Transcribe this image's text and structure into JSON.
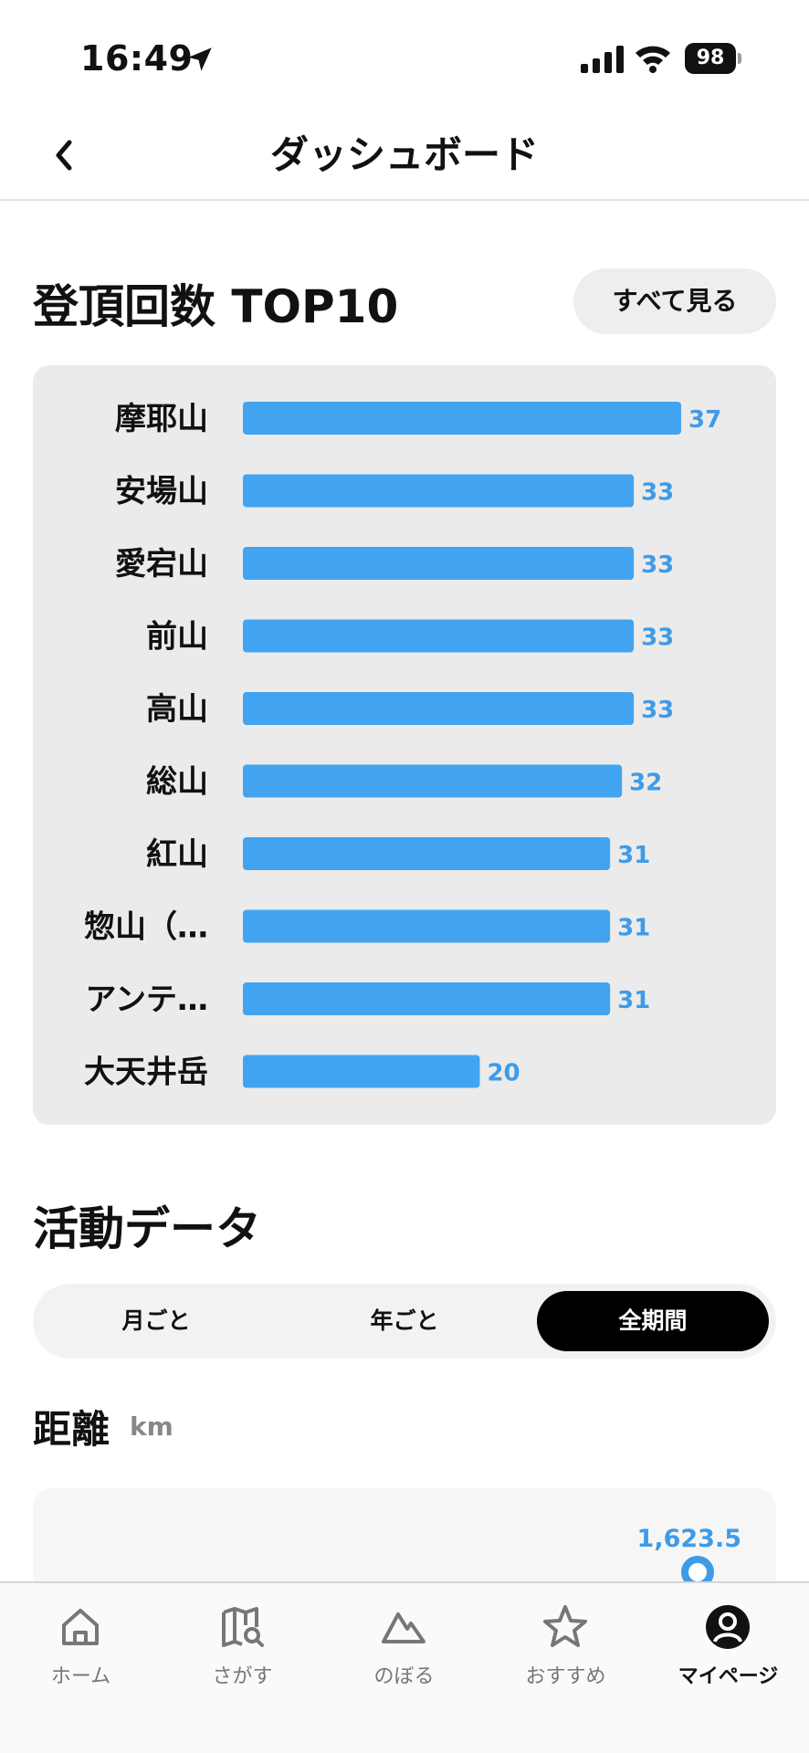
{
  "status_bar": {
    "time": "16:49",
    "battery": "98"
  },
  "header": {
    "title": "ダッシュボード"
  },
  "top10": {
    "title": "登頂回数 TOP10",
    "see_all_label": "すべて見る"
  },
  "chart_data": {
    "type": "bar",
    "orientation": "horizontal",
    "categories": [
      "摩耶山",
      "安場山",
      "愛宕山",
      "前山",
      "高山",
      "総山",
      "紅山",
      "惣山（…",
      "アンテ…",
      "大天井岳"
    ],
    "values": [
      37,
      33,
      33,
      33,
      33,
      32,
      31,
      31,
      31,
      20
    ],
    "data_labels": [
      "37",
      "33",
      "33",
      "33",
      "33",
      "32",
      "31",
      "31",
      "31",
      "20"
    ],
    "bar_color": "#42a4f0",
    "label_color": "#3f9be8",
    "grid": false,
    "legend": "none"
  },
  "activity": {
    "title": "活動データ",
    "segments": [
      "月ごと",
      "年ごと",
      "全期間"
    ],
    "selected_segment": "全期間"
  },
  "distance": {
    "title": "距離",
    "unit": "km",
    "latest_value": "1,623.5"
  },
  "tab_bar": {
    "items": [
      {
        "label": "ホーム",
        "icon": "home-icon"
      },
      {
        "label": "さがす",
        "icon": "map-search-icon"
      },
      {
        "label": "のぼる",
        "icon": "mountain-icon"
      },
      {
        "label": "おすすめ",
        "icon": "star-icon"
      },
      {
        "label": "マイページ",
        "icon": "profile-icon"
      }
    ],
    "active": "マイページ"
  },
  "colors": {
    "accent": "#42a4f0",
    "active_segment": "#000000"
  }
}
